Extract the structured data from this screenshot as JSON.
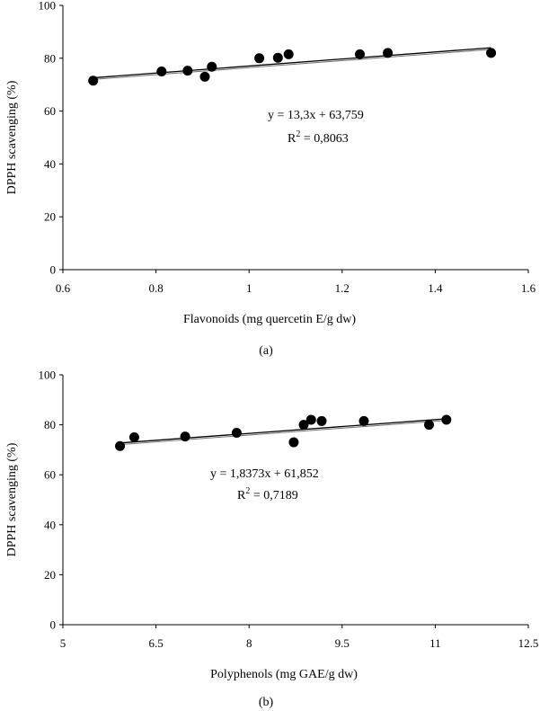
{
  "chart_data": [
    {
      "type": "scatter",
      "panel_label": "(a)",
      "xlabel": "Flavonoids (mg quercetin E/g dw)",
      "ylabel": "DPPH scavenging (%)",
      "xlim": [
        0.6,
        1.6
      ],
      "ylim": [
        0,
        100
      ],
      "xticks": [
        "0.6",
        "0.8",
        "1",
        "1.2",
        "1.4",
        "1.6"
      ],
      "yticks": [
        "0",
        "20",
        "40",
        "60",
        "80",
        "100"
      ],
      "points": [
        {
          "x": 0.665,
          "y": 71.5
        },
        {
          "x": 0.812,
          "y": 75.0
        },
        {
          "x": 0.868,
          "y": 75.3
        },
        {
          "x": 0.905,
          "y": 73.0
        },
        {
          "x": 0.92,
          "y": 76.8
        },
        {
          "x": 1.022,
          "y": 80.0
        },
        {
          "x": 1.062,
          "y": 80.2
        },
        {
          "x": 1.085,
          "y": 81.5
        },
        {
          "x": 1.238,
          "y": 81.5
        },
        {
          "x": 1.298,
          "y": 82.0
        },
        {
          "x": 1.52,
          "y": 82.0
        }
      ],
      "trendline": {
        "slope": 13.3,
        "intercept": 63.759,
        "x_start": 0.665,
        "x_end": 1.52
      },
      "equation": "y = 13,3x + 63,759",
      "r2_label": "R",
      "r2_exp": "2",
      "r2_value": " = 0,8063"
    },
    {
      "type": "scatter",
      "panel_label": "(b)",
      "xlabel": "Polyphenols (mg GAE/g dw)",
      "ylabel": "DPPH scavenging (%)",
      "xlim": [
        5,
        12.5
      ],
      "ylim": [
        0,
        100
      ],
      "xticks": [
        "5",
        "6.5",
        "8",
        "9.5",
        "11",
        "12.5"
      ],
      "yticks": [
        "0",
        "20",
        "40",
        "60",
        "80",
        "100"
      ],
      "points": [
        {
          "x": 5.92,
          "y": 71.5
        },
        {
          "x": 6.15,
          "y": 75.0
        },
        {
          "x": 6.97,
          "y": 75.3
        },
        {
          "x": 7.8,
          "y": 76.8
        },
        {
          "x": 8.72,
          "y": 73.0
        },
        {
          "x": 8.88,
          "y": 80.0
        },
        {
          "x": 9.0,
          "y": 82.0
        },
        {
          "x": 9.17,
          "y": 81.5
        },
        {
          "x": 9.85,
          "y": 81.5
        },
        {
          "x": 10.9,
          "y": 80.0
        },
        {
          "x": 11.18,
          "y": 82.0
        }
      ],
      "trendline": {
        "slope": 1.8373,
        "intercept": 61.852,
        "x_start": 5.92,
        "x_end": 11.18
      },
      "equation": "y = 1,8373x + 61,852",
      "r2_label": "R",
      "r2_exp": "2",
      "r2_value": " = 0,7189"
    }
  ]
}
